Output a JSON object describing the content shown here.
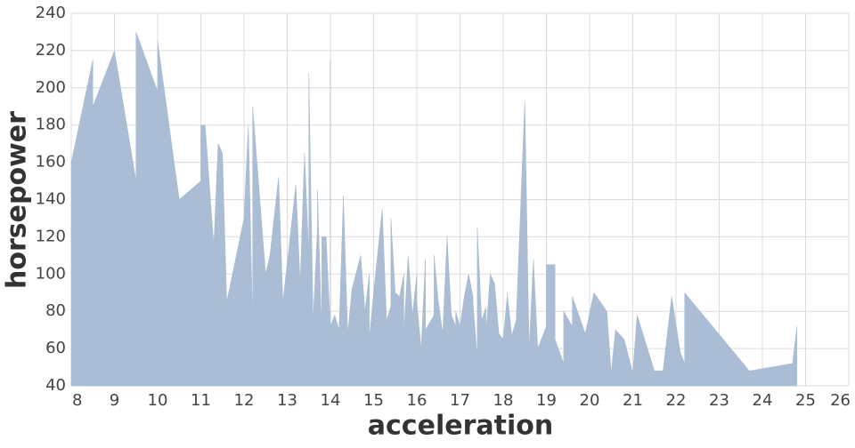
{
  "chart_data": {
    "type": "area",
    "x_label": "acceleration",
    "y_label": "horsepower",
    "x": [
      8.0,
      8.5,
      8.5,
      9.0,
      9.5,
      9.5,
      10.0,
      10.0,
      10.5,
      11.0,
      11.0,
      11.1,
      11.3,
      11.4,
      11.5,
      11.6,
      12.0,
      12.1,
      12.2,
      12.2,
      12.5,
      12.6,
      12.8,
      12.9,
      13.2,
      13.3,
      13.4,
      13.5,
      13.5,
      13.6,
      13.7,
      13.7,
      13.8,
      13.8,
      13.9,
      14.0,
      14.0,
      14.0,
      14.1,
      14.2,
      14.3,
      14.4,
      14.5,
      14.7,
      14.8,
      14.9,
      14.9,
      15.0,
      15.2,
      15.3,
      15.4,
      15.4,
      15.5,
      15.6,
      15.7,
      15.7,
      15.8,
      15.9,
      16.0,
      16.0,
      16.1,
      16.2,
      16.2,
      16.4,
      16.4,
      16.5,
      16.6,
      16.7,
      16.8,
      16.9,
      16.9,
      17.0,
      17.1,
      17.2,
      17.3,
      17.3,
      17.4,
      17.4,
      17.5,
      17.6,
      17.6,
      17.7,
      17.8,
      17.9,
      18.0,
      18.1,
      18.1,
      18.2,
      18.3,
      18.5,
      18.6,
      18.7,
      18.8,
      19.0,
      19.0,
      19.2,
      19.2,
      19.4,
      19.4,
      19.6,
      19.6,
      19.9,
      20.1,
      20.4,
      20.5,
      20.6,
      20.8,
      21.0,
      21.1,
      21.5,
      21.7,
      21.9,
      22.1,
      22.2,
      22.2,
      23.7,
      24.7,
      24.8
    ],
    "values": [
      160,
      215,
      190,
      220,
      150,
      230,
      198,
      225,
      140,
      150,
      180,
      180,
      115,
      170,
      165,
      85,
      130,
      180,
      72,
      190,
      100,
      110,
      152,
      85,
      148,
      95,
      165,
      110,
      208,
      75,
      125,
      145,
      68,
      120,
      120,
      70,
      215,
      72,
      78,
      70,
      142,
      68,
      92,
      110,
      80,
      100,
      65,
      90,
      135,
      75,
      83,
      130,
      90,
      88,
      100,
      68,
      110,
      78,
      100,
      85,
      60,
      108,
      70,
      78,
      110,
      85,
      68,
      120,
      78,
      72,
      80,
      72,
      88,
      100,
      88,
      85,
      55,
      125,
      75,
      82,
      68,
      100,
      95,
      68,
      65,
      90,
      88,
      67,
      75,
      193,
      60,
      108,
      60,
      72,
      105,
      105,
      65,
      52,
      80,
      72,
      88,
      68,
      90,
      80,
      47,
      70,
      65,
      47,
      78,
      48,
      48,
      88,
      58,
      52,
      90,
      48,
      52,
      72
    ],
    "color": "#a5b9d3",
    "xlim": [
      8,
      26
    ],
    "xticks": [
      8,
      9,
      10,
      11,
      12,
      13,
      14,
      15,
      16,
      17,
      18,
      19,
      20,
      21,
      22,
      23,
      24,
      25,
      26
    ],
    "ylim": [
      40,
      240
    ],
    "yticks": [
      40,
      60,
      80,
      100,
      120,
      140,
      160,
      180,
      200,
      220,
      240
    ],
    "grid": true
  }
}
